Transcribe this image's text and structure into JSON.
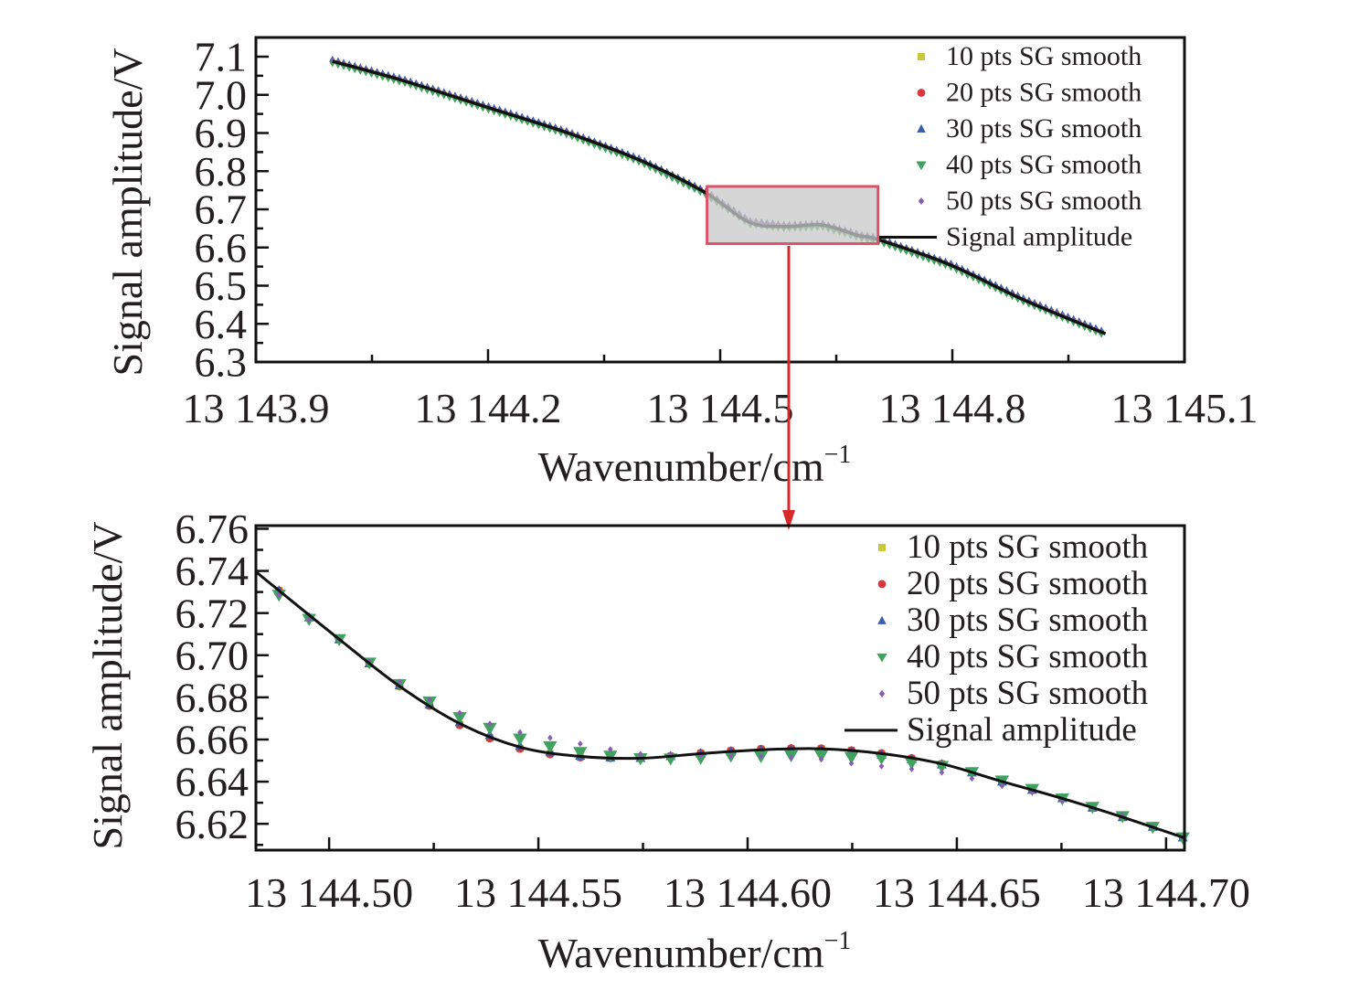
{
  "colors": {
    "s10": "#c8c83a",
    "s20": "#d9363e",
    "s30": "#3b5fae",
    "s40": "#3fa35f",
    "s50": "#8a5db0",
    "line": "#111111",
    "zoom_box_stroke": "#d9546a",
    "zoom_box_fill": "#c8c8c8",
    "arrow": "#d62a2a"
  },
  "chart_data": [
    {
      "type": "line",
      "panel": "top",
      "title": "",
      "xlabel": "Wavenumber/cm",
      "xlabel_sup": "−1",
      "ylabel": "Signal amplitude/V",
      "xlim": [
        13143.9,
        13145.1
      ],
      "ylim": [
        6.3,
        7.1
      ],
      "xticks": [
        13143.9,
        13144.2,
        13144.5,
        13144.8,
        13145.1
      ],
      "xtick_labels": [
        "13 143.9",
        "13 144.2",
        "13 144.5",
        "13 144.8",
        "13 145.1"
      ],
      "yticks": [
        6.3,
        6.4,
        6.5,
        6.6,
        6.7,
        6.8,
        6.9,
        7.0,
        7.1
      ],
      "ytick_labels": [
        "6.3",
        "6.4",
        "6.5",
        "6.6",
        "6.7",
        "6.8",
        "6.9",
        "7.0",
        "7.1"
      ],
      "grid": false,
      "legend_position": "top-right",
      "legend": [
        {
          "label": "10 pts SG smooth",
          "marker": "square",
          "color_key": "s10"
        },
        {
          "label": "20 pts SG smooth",
          "marker": "circle",
          "color_key": "s20"
        },
        {
          "label": "30 pts SG smooth",
          "marker": "triangle-up",
          "color_key": "s30"
        },
        {
          "label": "40 pts SG smooth",
          "marker": "triangle-down",
          "color_key": "s40"
        },
        {
          "label": "50 pts SG smooth",
          "marker": "diamond",
          "color_key": "s50"
        },
        {
          "label": "Signal amplitude",
          "marker": "line",
          "color_key": "line"
        }
      ],
      "signal_amplitude": {
        "x": [
          13143.999,
          13144.089,
          13144.201,
          13144.302,
          13144.396,
          13144.48,
          13144.538,
          13144.585,
          13144.632,
          13144.679,
          13144.704,
          13144.798,
          13144.892,
          13144.998
        ],
        "y": [
          7.088,
          7.038,
          6.966,
          6.901,
          6.829,
          6.745,
          6.666,
          6.655,
          6.659,
          6.631,
          6.621,
          6.554,
          6.463,
          6.374
        ]
      },
      "smoothed_series_note": "All five SG smooth series overlap the signal amplitude curve (markers every ~0.0072 cm-1)",
      "marker_step": 0.0072,
      "zoom_region": {
        "x": [
          13144.483,
          13144.704
        ],
        "y": [
          6.61,
          6.76
        ]
      }
    },
    {
      "type": "line",
      "panel": "bottom",
      "title": "",
      "xlabel": "Wavenumber/cm",
      "xlabel_sup": "−1",
      "ylabel": "Signal amplitude/V",
      "xlim": [
        13144.4825,
        13144.7044
      ],
      "ylim": [
        6.6075,
        6.7615
      ],
      "xticks": [
        13144.5,
        13144.55,
        13144.6,
        13144.65,
        13144.7
      ],
      "xtick_labels": [
        "13 144.50",
        "13 144.55",
        "13 144.60",
        "13 144.65",
        "13 144.70"
      ],
      "yticks": [
        6.62,
        6.64,
        6.66,
        6.68,
        6.7,
        6.72,
        6.74,
        6.76
      ],
      "ytick_labels": [
        "6.62",
        "6.64",
        "6.66",
        "6.68",
        "6.70",
        "6.72",
        "6.74",
        "6.76"
      ],
      "grid": false,
      "legend_position": "top-right",
      "legend": [
        {
          "label": "10 pts SG smooth",
          "marker": "square",
          "color_key": "s10"
        },
        {
          "label": "20 pts SG smooth",
          "marker": "circle",
          "color_key": "s20"
        },
        {
          "label": "30 pts SG smooth",
          "marker": "triangle-up",
          "color_key": "s30"
        },
        {
          "label": "40 pts SG smooth",
          "marker": "triangle-down",
          "color_key": "s40"
        },
        {
          "label": "50 pts SG smooth",
          "marker": "diamond",
          "color_key": "s50"
        },
        {
          "label": "Signal amplitude",
          "marker": "line",
          "color_key": "line"
        }
      ],
      "signal_amplitude": {
        "x": [
          13144.4825,
          13144.488,
          13144.5024,
          13144.5168,
          13144.5312,
          13144.5456,
          13144.56,
          13144.5745,
          13144.5888,
          13144.6033,
          13144.6177,
          13144.6321,
          13144.6465,
          13144.6609,
          13144.6753,
          13144.6897,
          13144.7044
        ],
        "y": [
          6.7396,
          6.7307,
          6.7076,
          6.6853,
          6.6676,
          6.6564,
          6.652,
          6.6511,
          6.6533,
          6.6551,
          6.6556,
          6.6533,
          6.6484,
          6.64,
          6.632,
          6.6231,
          6.6133
        ]
      },
      "x": [
        13144.488,
        13144.4952,
        13144.5024,
        13144.5096,
        13144.5168,
        13144.524,
        13144.5312,
        13144.5384,
        13144.5456,
        13144.5528,
        13144.56,
        13144.5672,
        13144.5744,
        13144.5816,
        13144.5888,
        13144.596,
        13144.6032,
        13144.6104,
        13144.6176,
        13144.6248,
        13144.632,
        13144.6392,
        13144.6464,
        13144.6536,
        13144.6608,
        13144.668,
        13144.6752,
        13144.6824,
        13144.6896,
        13144.6968,
        13144.704
      ],
      "series": [
        {
          "name": "10 pts SG smooth",
          "marker": "square",
          "color_key": "s10",
          "values": [
            6.7307,
            6.718,
            6.7076,
            6.696,
            6.6853,
            6.676,
            6.6671,
            6.6608,
            6.6558,
            6.6533,
            6.6516,
            6.6511,
            6.6511,
            6.6521,
            6.6535,
            6.6546,
            6.6554,
            6.6557,
            6.6557,
            6.6548,
            6.6533,
            6.651,
            6.6484,
            6.6445,
            6.64,
            6.636,
            6.632,
            6.6275,
            6.6231,
            6.6185,
            6.6135
          ]
        },
        {
          "name": "20 pts SG smooth",
          "marker": "circle",
          "color_key": "s20",
          "values": [
            6.7307,
            6.718,
            6.7076,
            6.696,
            6.6853,
            6.676,
            6.6668,
            6.6605,
            6.6556,
            6.653,
            6.6515,
            6.6512,
            6.6512,
            6.6522,
            6.6537,
            6.6548,
            6.6556,
            6.6559,
            6.6558,
            6.6549,
            6.6535,
            6.6512,
            6.6485,
            6.6446,
            6.6401,
            6.636,
            6.632,
            6.6275,
            6.6231,
            6.6185,
            6.6135
          ]
        },
        {
          "name": "30 pts SG smooth",
          "marker": "triangle-up",
          "color_key": "s30",
          "values": [
            6.7307,
            6.718,
            6.7076,
            6.6962,
            6.6858,
            6.6768,
            6.6683,
            6.6622,
            6.657,
            6.6543,
            6.6524,
            6.6516,
            6.6513,
            6.6522,
            6.6534,
            6.6543,
            6.6549,
            6.6551,
            6.655,
            6.6542,
            6.6528,
            6.6507,
            6.6482,
            6.6445,
            6.6401,
            6.6362,
            6.6322,
            6.6277,
            6.6232,
            6.6186,
            6.6136
          ]
        },
        {
          "name": "40 pts SG smooth",
          "marker": "triangle-down",
          "color_key": "s40",
          "values": [
            6.7287,
            6.7172,
            6.7076,
            6.6965,
            6.6863,
            6.678,
            6.6706,
            6.6655,
            6.6604,
            6.6568,
            6.654,
            6.6523,
            6.6511,
            6.651,
            6.6513,
            6.6523,
            6.6521,
            6.6525,
            6.6526,
            6.6517,
            6.6513,
            6.649,
            6.6474,
            6.6445,
            6.6405,
            6.6365,
            6.632,
            6.628,
            6.6236,
            6.6185,
            6.6135
          ]
        },
        {
          "name": "50 pts SG smooth",
          "marker": "diamond",
          "color_key": "s50",
          "values": [
            6.7287,
            6.717,
            6.7076,
            6.697,
            6.6873,
            6.679,
            6.6726,
            6.6675,
            6.6634,
            6.6608,
            6.658,
            6.6553,
            6.6531,
            6.653,
            6.6523,
            6.6523,
            6.6521,
            6.6515,
            6.6506,
            6.6487,
            6.6473,
            6.646,
            6.6444,
            6.6415,
            6.638,
            6.635,
            6.631,
            6.6275,
            6.6241,
            6.6185,
            6.6135
          ]
        }
      ]
    }
  ]
}
